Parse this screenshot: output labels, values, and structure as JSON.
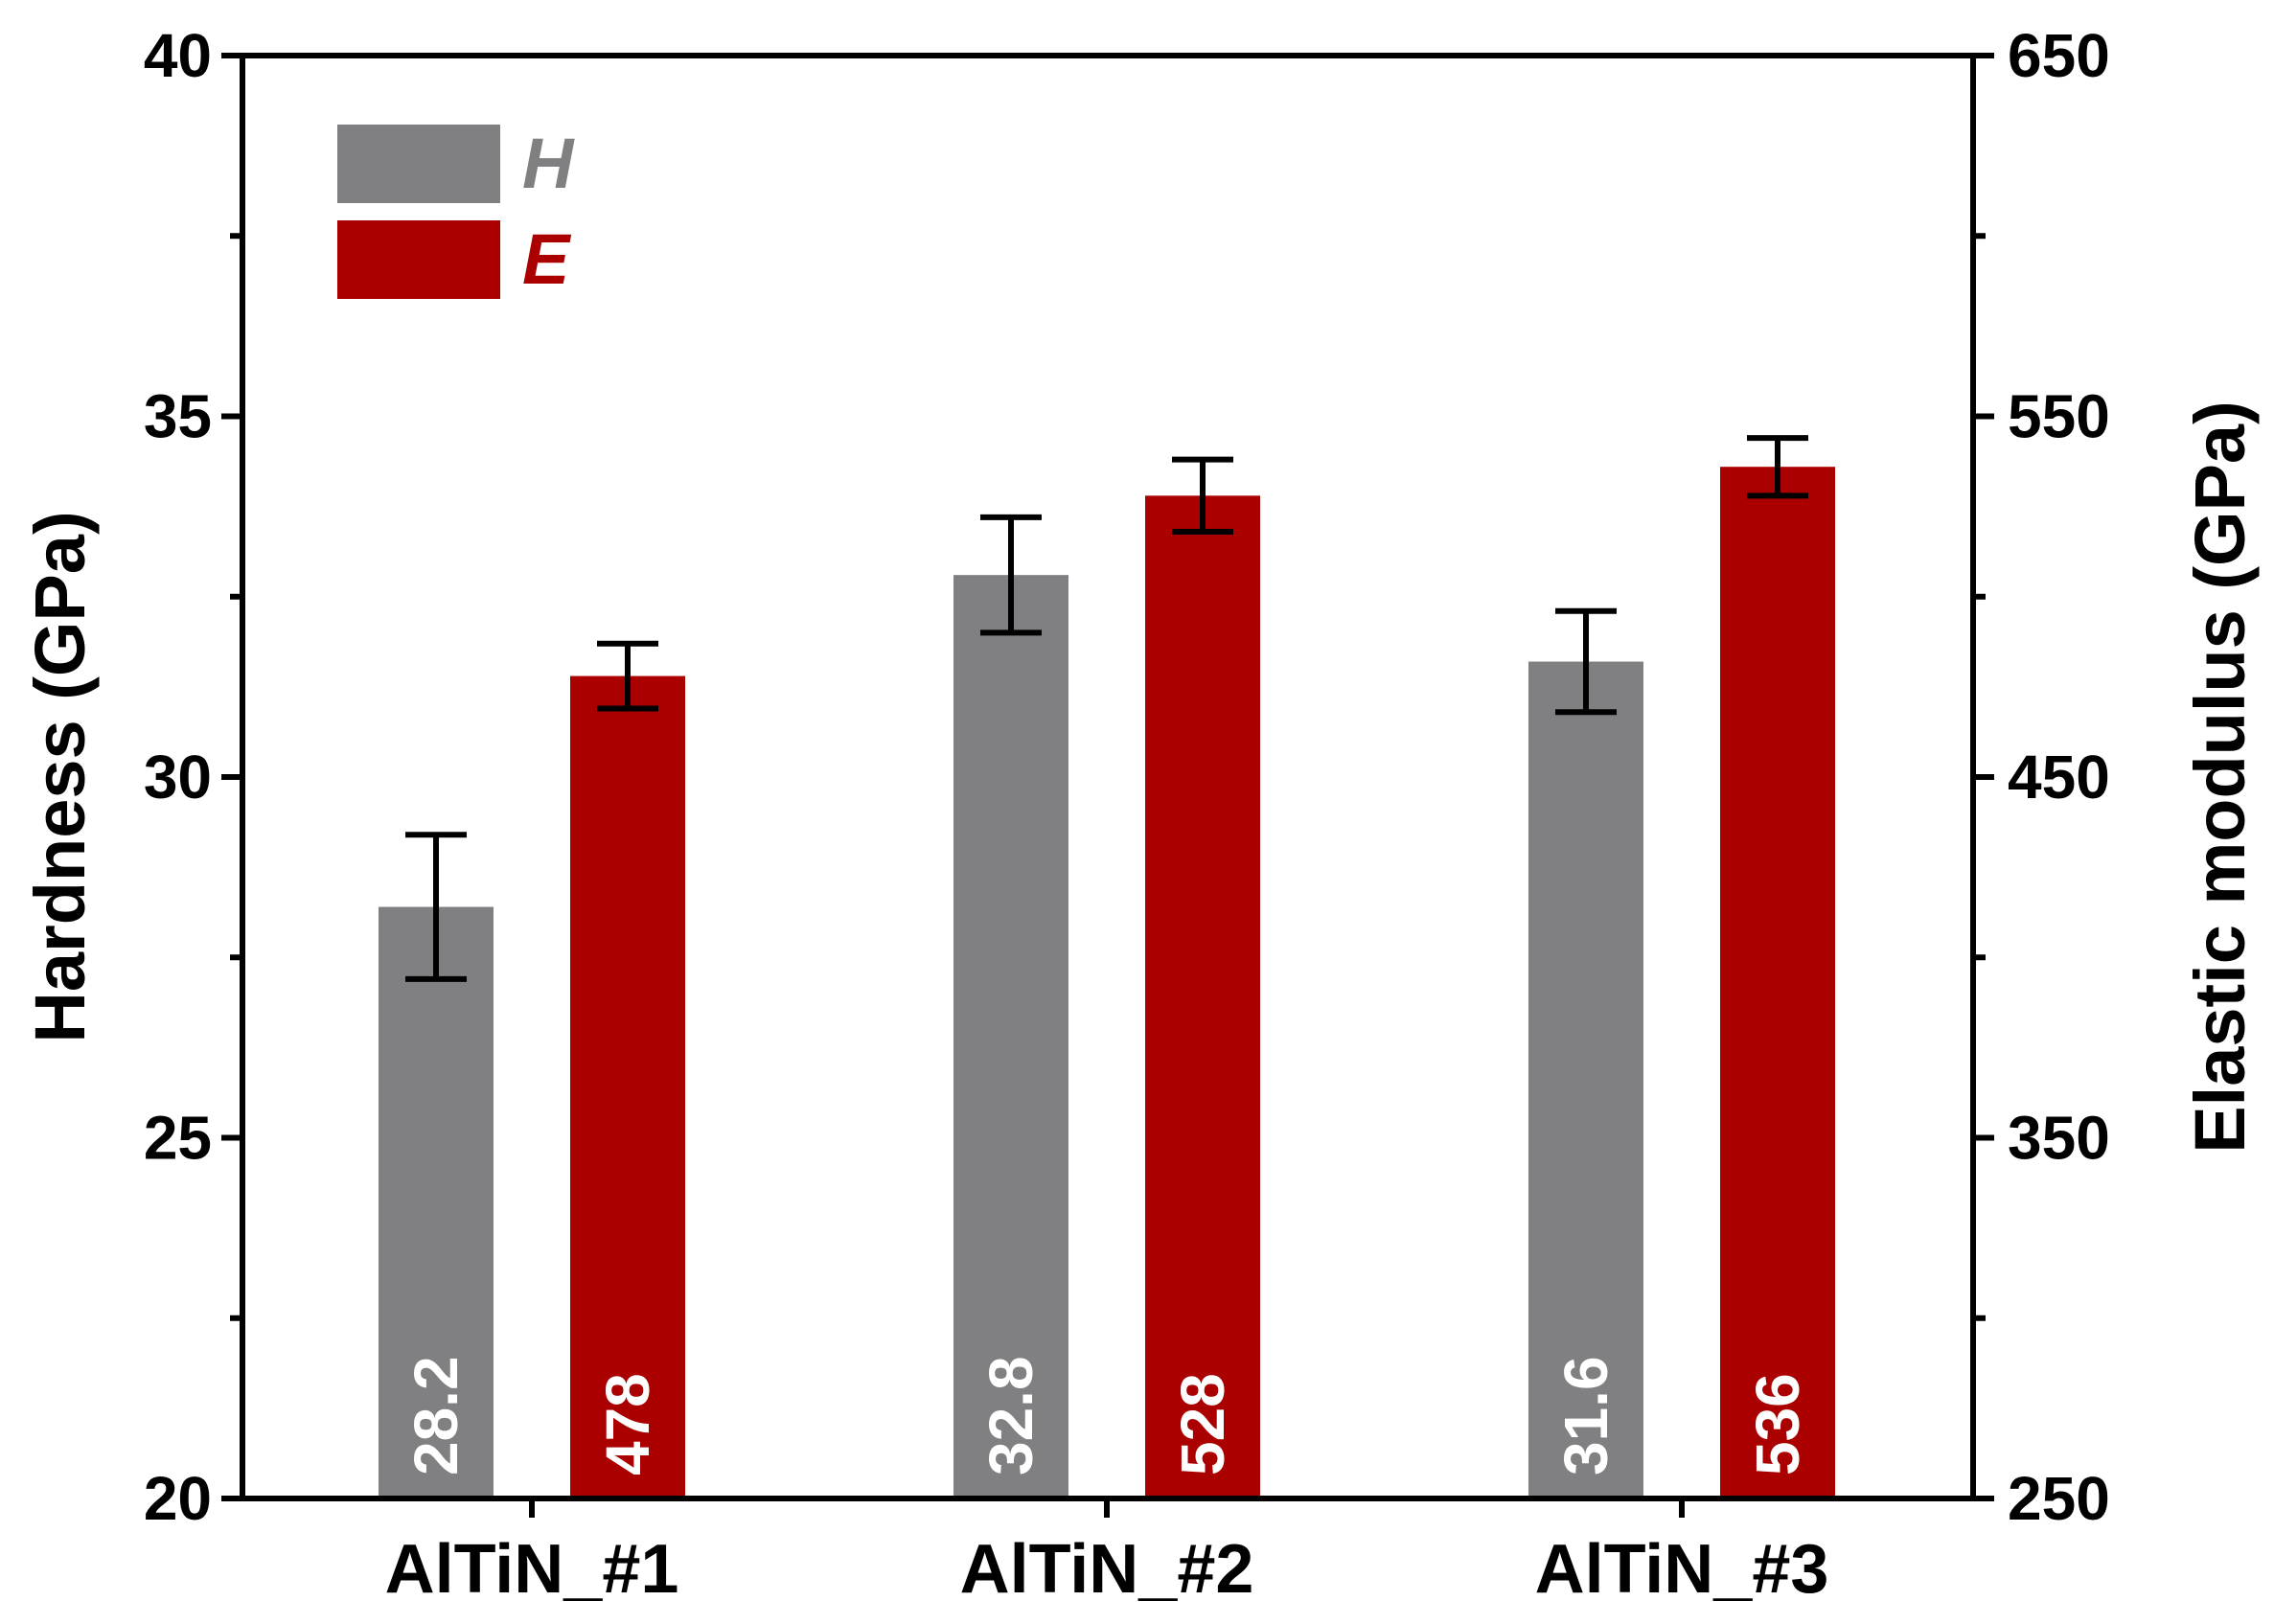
{
  "chart_data": {
    "type": "bar",
    "categories": [
      "AlTiN_#1",
      "AlTiN_#2",
      "AlTiN_#3"
    ],
    "series": [
      {
        "name": "H",
        "axis": "left",
        "color": "#808083",
        "values": [
          28.2,
          32.8,
          31.6
        ],
        "error": [
          1.0,
          0.8,
          0.7
        ],
        "labels": [
          "28.2",
          "32.8",
          "31.6"
        ]
      },
      {
        "name": "E",
        "axis": "right",
        "color": "#AA0000",
        "values": [
          478,
          528,
          536
        ],
        "error": [
          9,
          10,
          8
        ],
        "labels": [
          "478",
          "528",
          "536"
        ]
      }
    ],
    "left_axis": {
      "label": "Hardness (GPa)",
      "ylim": [
        20,
        40
      ],
      "ticks": [
        "20",
        "25",
        "30",
        "35",
        "40"
      ]
    },
    "right_axis": {
      "label": "Elastic modulus (GPa)",
      "ylim": [
        250,
        650
      ],
      "ticks": [
        "250",
        "350",
        "450",
        "550",
        "650"
      ]
    },
    "legend": {
      "position": "top-left"
    },
    "grid": false
  }
}
